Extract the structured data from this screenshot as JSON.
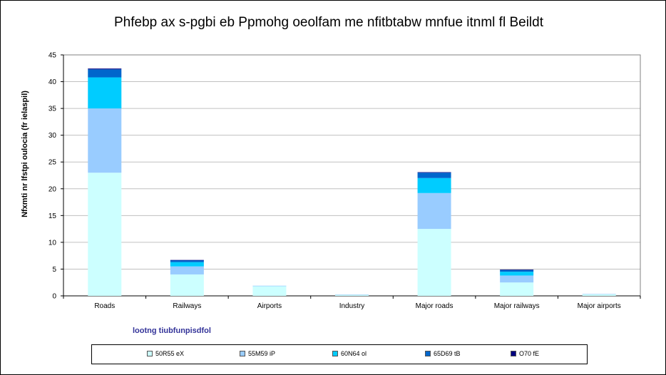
{
  "chart_data": {
    "type": "bar",
    "stacked": true,
    "title": "Phfebp ax s-pgbi eb Ppmohg oeolfam me nfitbtabw mnfue itnml fl Beildt",
    "ylabel": "Nfxmti nr lfstpi oulocia (fr ielaspil)",
    "xnote": "lootng tiubfunpisdfol",
    "categories": [
      "Roads",
      "Railways",
      "Airports",
      "Industry",
      "Major roads",
      "Major railways",
      "Major airports"
    ],
    "ylim": [
      0,
      45
    ],
    "yticks": [
      0,
      5,
      10,
      15,
      20,
      25,
      30,
      35,
      40,
      45
    ],
    "grid": true,
    "legend_position": "bottom",
    "series": [
      {
        "name": "50R55 eX",
        "color": "#ccffff",
        "values": [
          23.0,
          4.0,
          1.8,
          0.2,
          12.5,
          2.5,
          0.3
        ]
      },
      {
        "name": "55M59 iP",
        "color": "#99ccff",
        "values": [
          12.0,
          1.5,
          0.1,
          0.05,
          6.7,
          1.3,
          0.05
        ]
      },
      {
        "name": "60N64 ol",
        "color": "#00ccff",
        "values": [
          5.8,
          0.8,
          0.0,
          0.0,
          2.8,
          0.7,
          0.0
        ]
      },
      {
        "name": "65D69 tB",
        "color": "#0066cc",
        "values": [
          1.5,
          0.35,
          0.0,
          0.0,
          1.0,
          0.35,
          0.0
        ]
      },
      {
        "name": "O70 fE",
        "color": "#000080",
        "values": [
          0.15,
          0.05,
          0.0,
          0.0,
          0.1,
          0.05,
          0.0
        ]
      }
    ]
  }
}
